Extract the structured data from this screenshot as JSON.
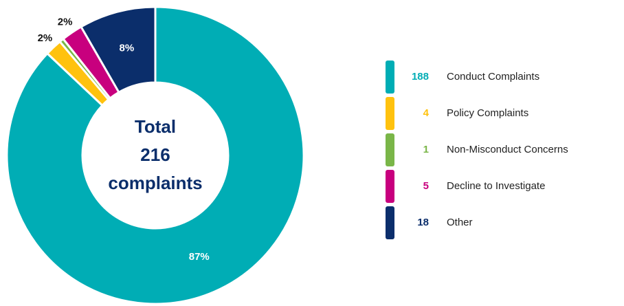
{
  "chart_data": {
    "type": "donut",
    "categories": [
      "Conduct Complaints",
      "Policy Complaints",
      "Non-Misconduct Concerns",
      "Decline to Investigate",
      "Other"
    ],
    "values": [
      188,
      4,
      1,
      5,
      18
    ],
    "value_labels": [
      "87%",
      "2%",
      null,
      "2%",
      "8%"
    ],
    "colors": [
      "#00adb5",
      "#ffc20e",
      "#7ab648",
      "#c8007e",
      "#0b2e6b"
    ],
    "center_label": [
      "Total",
      "216",
      "complaints"
    ]
  }
}
